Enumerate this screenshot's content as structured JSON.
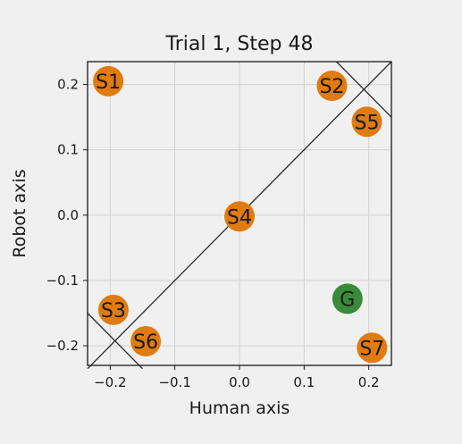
{
  "chart_data": {
    "type": "scatter",
    "title": "Trial 1, Step 48",
    "xlabel": "Human axis",
    "ylabel": "Robot axis",
    "xlim": [
      -0.235,
      0.235
    ],
    "ylim": [
      -0.23,
      0.235
    ],
    "x_ticks": [
      -0.2,
      -0.1,
      0.0,
      0.1,
      0.2
    ],
    "x_tick_labels": [
      "−0.2",
      "−0.1",
      "0.0",
      "0.1",
      "0.2"
    ],
    "y_ticks": [
      -0.2,
      -0.1,
      0.0,
      0.1,
      0.2
    ],
    "y_tick_labels": [
      "−0.2",
      "−0.1",
      "0.0",
      "0.1",
      "0.2"
    ],
    "grid": true,
    "points": [
      {
        "label": "S1",
        "x": -0.203,
        "y": 0.205,
        "color": "#e07b10"
      },
      {
        "label": "S2",
        "x": 0.143,
        "y": 0.198,
        "color": "#e07b10"
      },
      {
        "label": "S5",
        "x": 0.197,
        "y": 0.143,
        "color": "#e07b10"
      },
      {
        "label": "S4",
        "x": 0.0,
        "y": -0.002,
        "color": "#e07b10"
      },
      {
        "label": "S3",
        "x": -0.195,
        "y": -0.145,
        "color": "#e07b10"
      },
      {
        "label": "S6",
        "x": -0.145,
        "y": -0.193,
        "color": "#e07b10"
      },
      {
        "label": "G",
        "x": 0.167,
        "y": -0.128,
        "color": "#3a8a3a"
      },
      {
        "label": "S7",
        "x": 0.205,
        "y": -0.203,
        "color": "#e07b10"
      }
    ],
    "lines": [
      {
        "x": [
          -0.235,
          0.235
        ],
        "y": [
          -0.235,
          0.235
        ]
      },
      {
        "x": [
          0.15,
          0.235
        ],
        "y": [
          0.235,
          0.15
        ]
      },
      {
        "x": [
          -0.235,
          -0.15
        ],
        "y": [
          -0.15,
          -0.235
        ]
      }
    ]
  }
}
